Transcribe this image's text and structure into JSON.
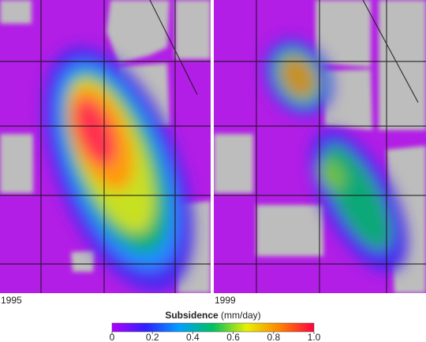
{
  "panels": [
    {
      "label": "1995"
    },
    {
      "label": "1999"
    }
  ],
  "colorbar": {
    "title": "Subsidence",
    "unit": "(mm/day)",
    "range": [
      0,
      1
    ],
    "ticks": [
      0,
      0.2,
      0.4,
      0.6,
      0.8,
      {
        "value": 1,
        "label": "1.0"
      }
    ],
    "colors": [
      "#b000ff",
      "#3020ff",
      "#00a0ff",
      "#00c060",
      "#e8f000",
      "#ff8000",
      "#ff0040"
    ]
  }
}
